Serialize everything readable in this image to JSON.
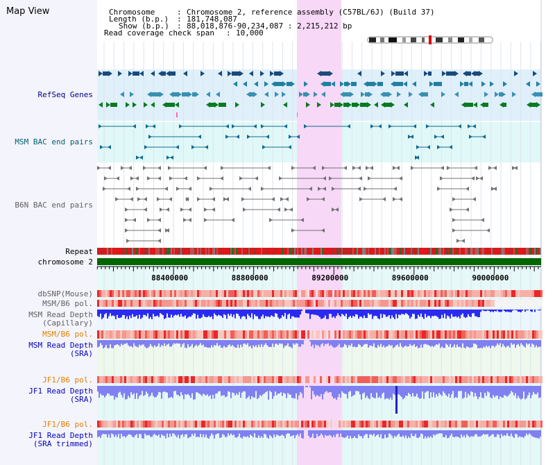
{
  "page": {
    "title": "Map View"
  },
  "info": {
    "chromosome_label": "Chromosome",
    "chromosome_value": "Chromosome 2, reference assembly (C57BL/6J) (Build 37)",
    "length_label": "Length (b.p.)",
    "length_value": "181,748,087",
    "show_label": "Show (b.p.)",
    "show_value": "88,018,876-90,234,087 : 2,215,212 bp",
    "coverage_label": "Read coverage check span",
    "coverage_value": "10,000"
  },
  "tracks": {
    "refseq": "RefSeq Genes",
    "msm_bac": "MSM BAC end pairs",
    "b6n_bac": "B6N BAC end pairs",
    "repeat": "Repeat",
    "chromosome": "chromosome 2",
    "dbsnp": "dbSNP(Mouse)",
    "msm_b6_pol": "MSM/B6 pol.",
    "msm_depth_cap": "MSM Read Depth\n(Capillary)",
    "msm_b6_pol2": "MSM/B6 pol.",
    "msm_depth_sra": "MSM Read Depth\n(SRA)",
    "jf1_b6_pol": "JF1/B6 pol.",
    "jf1_depth_sra": "JF1 Read Depth\n(SRA)",
    "jf1_b6_pol2": "JF1/B6 pol.",
    "jf1_depth_trim": "JF1 Read Depth\n(SRA trimmed)"
  },
  "axis": {
    "ticks": [
      "88400000",
      "88800000",
      "89200000",
      "89600000",
      "90000000"
    ],
    "tick_values": [
      88400000,
      88800000,
      89200000,
      89600000,
      90000000
    ],
    "start": 88018876,
    "end": 90234087
  },
  "colors": {
    "highlight": "#f7d8f7",
    "refseq_bg": "#dff0fb",
    "msm_bac_bg": "#e0f8f8",
    "label_navy": "#000080",
    "label_teal": "#006070",
    "label_gray": "#606060",
    "label_orange": "#e08000",
    "label_blue": "#0000c0",
    "chromosome_bar": "#006600",
    "depth_blue": "#2a2af0",
    "depth_light": "#8080f0"
  },
  "icons": {
    "ideogram": "chromosome-ideogram"
  }
}
